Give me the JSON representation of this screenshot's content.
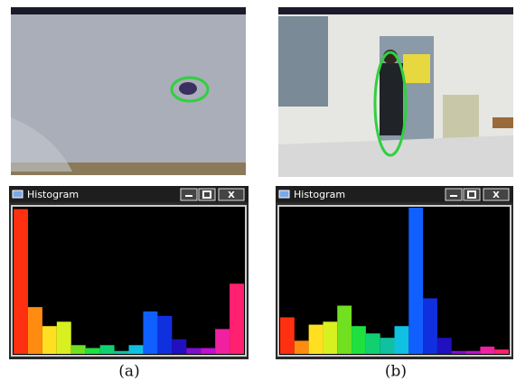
{
  "panels": [
    {
      "caption": "(a)",
      "window": {
        "title": "Histogram",
        "close": "X"
      },
      "histogram": {
        "values": [
          99,
          32,
          19,
          22,
          6,
          4,
          6,
          2,
          6,
          29,
          26,
          10,
          4,
          4,
          17,
          48
        ]
      }
    },
    {
      "caption": "(b)",
      "window": {
        "title": "Histogram",
        "close": "X"
      },
      "histogram": {
        "values": [
          25,
          9,
          20,
          22,
          33,
          19,
          14,
          11,
          19,
          100,
          38,
          11,
          2,
          2,
          5,
          3
        ]
      }
    }
  ],
  "bin_colors": [
    "#ff3010",
    "#ff8c10",
    "#ffe020",
    "#d8f020",
    "#70e020",
    "#20e040",
    "#10d070",
    "#10c0a0",
    "#10c0e0",
    "#1060ff",
    "#1030e0",
    "#2010c0",
    "#8010d0",
    "#c010d0",
    "#f020a0",
    "#ff2070"
  ]
}
